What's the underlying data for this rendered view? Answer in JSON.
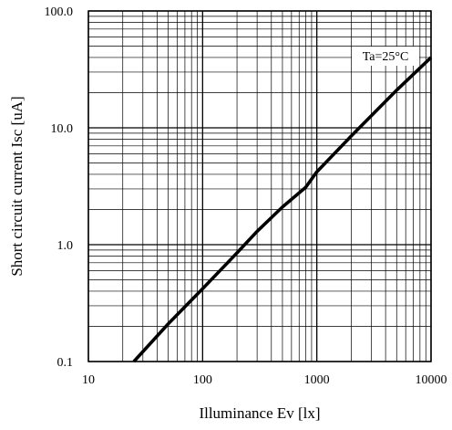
{
  "chart_data": {
    "type": "line",
    "title": "",
    "xlabel": "Illuminance Ev [lx]",
    "ylabel": "Short circuit current Isc [uA]",
    "x_scale": "log",
    "y_scale": "log",
    "xlim": [
      10,
      10000
    ],
    "ylim": [
      0.1,
      100
    ],
    "grid": true,
    "x_ticks": [
      {
        "value": 10,
        "label": "10"
      },
      {
        "value": 100,
        "label": "100"
      },
      {
        "value": 1000,
        "label": "1000"
      },
      {
        "value": 10000,
        "label": "10000"
      }
    ],
    "y_ticks": [
      {
        "value": 0.1,
        "label": "0.1"
      },
      {
        "value": 1,
        "label": "1.0"
      },
      {
        "value": 10,
        "label": "10.0"
      },
      {
        "value": 100,
        "label": "100.0"
      }
    ],
    "annotations": [
      {
        "text": "Ta=25°C",
        "position": "top-right"
      }
    ],
    "series": [
      {
        "color": "#000000",
        "x": [
          25,
          50,
          100,
          200,
          300,
          500,
          800,
          1000,
          2000,
          5000,
          10000
        ],
        "y": [
          0.1,
          0.21,
          0.42,
          0.85,
          1.3,
          2.1,
          3.1,
          4.2,
          8.5,
          21,
          40
        ]
      }
    ]
  }
}
